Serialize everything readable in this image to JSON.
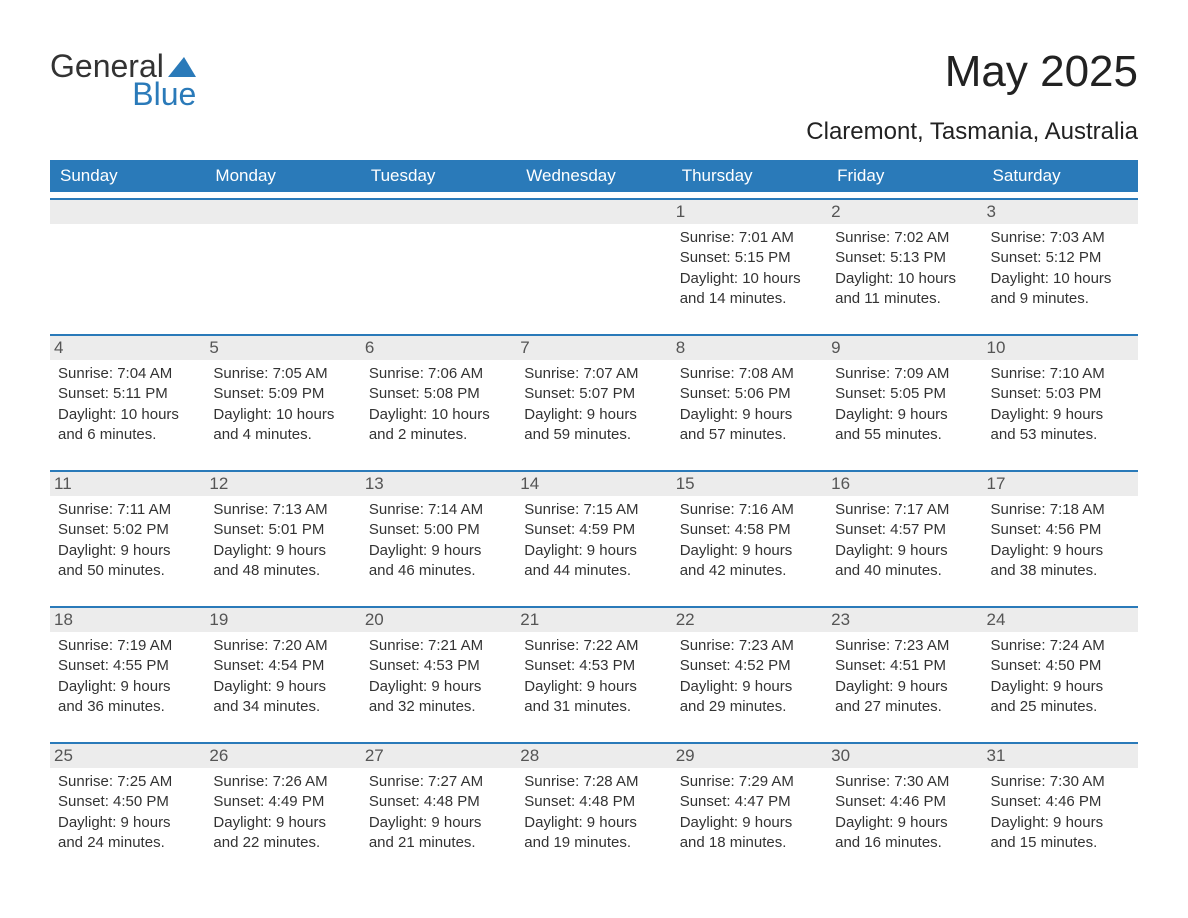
{
  "logo": {
    "text1": "General",
    "text2": "Blue",
    "mark_color": "#2a7ab9"
  },
  "title": "May 2025",
  "subtitle": "Claremont, Tasmania, Australia",
  "colors": {
    "header_bg": "#2a7ab9",
    "header_text": "#ffffff",
    "daynum_bg": "#ececec",
    "daynum_text": "#555555",
    "body_text": "#333333",
    "rule": "#2a7ab9",
    "page_bg": "#ffffff"
  },
  "layout": {
    "columns": 7,
    "rows": 5,
    "font_family": "Arial",
    "title_fontsize": 44,
    "subtitle_fontsize": 24,
    "dow_fontsize": 17,
    "daynum_fontsize": 17,
    "info_fontsize": 15
  },
  "days_of_week": [
    "Sunday",
    "Monday",
    "Tuesday",
    "Wednesday",
    "Thursday",
    "Friday",
    "Saturday"
  ],
  "weeks": [
    [
      {
        "blank": true
      },
      {
        "blank": true
      },
      {
        "blank": true
      },
      {
        "blank": true
      },
      {
        "day": "1",
        "sunrise": "Sunrise: 7:01 AM",
        "sunset": "Sunset: 5:15 PM",
        "daylight": "Daylight: 10 hours and 14 minutes."
      },
      {
        "day": "2",
        "sunrise": "Sunrise: 7:02 AM",
        "sunset": "Sunset: 5:13 PM",
        "daylight": "Daylight: 10 hours and 11 minutes."
      },
      {
        "day": "3",
        "sunrise": "Sunrise: 7:03 AM",
        "sunset": "Sunset: 5:12 PM",
        "daylight": "Daylight: 10 hours and 9 minutes."
      }
    ],
    [
      {
        "day": "4",
        "sunrise": "Sunrise: 7:04 AM",
        "sunset": "Sunset: 5:11 PM",
        "daylight": "Daylight: 10 hours and 6 minutes."
      },
      {
        "day": "5",
        "sunrise": "Sunrise: 7:05 AM",
        "sunset": "Sunset: 5:09 PM",
        "daylight": "Daylight: 10 hours and 4 minutes."
      },
      {
        "day": "6",
        "sunrise": "Sunrise: 7:06 AM",
        "sunset": "Sunset: 5:08 PM",
        "daylight": "Daylight: 10 hours and 2 minutes."
      },
      {
        "day": "7",
        "sunrise": "Sunrise: 7:07 AM",
        "sunset": "Sunset: 5:07 PM",
        "daylight": "Daylight: 9 hours and 59 minutes."
      },
      {
        "day": "8",
        "sunrise": "Sunrise: 7:08 AM",
        "sunset": "Sunset: 5:06 PM",
        "daylight": "Daylight: 9 hours and 57 minutes."
      },
      {
        "day": "9",
        "sunrise": "Sunrise: 7:09 AM",
        "sunset": "Sunset: 5:05 PM",
        "daylight": "Daylight: 9 hours and 55 minutes."
      },
      {
        "day": "10",
        "sunrise": "Sunrise: 7:10 AM",
        "sunset": "Sunset: 5:03 PM",
        "daylight": "Daylight: 9 hours and 53 minutes."
      }
    ],
    [
      {
        "day": "11",
        "sunrise": "Sunrise: 7:11 AM",
        "sunset": "Sunset: 5:02 PM",
        "daylight": "Daylight: 9 hours and 50 minutes."
      },
      {
        "day": "12",
        "sunrise": "Sunrise: 7:13 AM",
        "sunset": "Sunset: 5:01 PM",
        "daylight": "Daylight: 9 hours and 48 minutes."
      },
      {
        "day": "13",
        "sunrise": "Sunrise: 7:14 AM",
        "sunset": "Sunset: 5:00 PM",
        "daylight": "Daylight: 9 hours and 46 minutes."
      },
      {
        "day": "14",
        "sunrise": "Sunrise: 7:15 AM",
        "sunset": "Sunset: 4:59 PM",
        "daylight": "Daylight: 9 hours and 44 minutes."
      },
      {
        "day": "15",
        "sunrise": "Sunrise: 7:16 AM",
        "sunset": "Sunset: 4:58 PM",
        "daylight": "Daylight: 9 hours and 42 minutes."
      },
      {
        "day": "16",
        "sunrise": "Sunrise: 7:17 AM",
        "sunset": "Sunset: 4:57 PM",
        "daylight": "Daylight: 9 hours and 40 minutes."
      },
      {
        "day": "17",
        "sunrise": "Sunrise: 7:18 AM",
        "sunset": "Sunset: 4:56 PM",
        "daylight": "Daylight: 9 hours and 38 minutes."
      }
    ],
    [
      {
        "day": "18",
        "sunrise": "Sunrise: 7:19 AM",
        "sunset": "Sunset: 4:55 PM",
        "daylight": "Daylight: 9 hours and 36 minutes."
      },
      {
        "day": "19",
        "sunrise": "Sunrise: 7:20 AM",
        "sunset": "Sunset: 4:54 PM",
        "daylight": "Daylight: 9 hours and 34 minutes."
      },
      {
        "day": "20",
        "sunrise": "Sunrise: 7:21 AM",
        "sunset": "Sunset: 4:53 PM",
        "daylight": "Daylight: 9 hours and 32 minutes."
      },
      {
        "day": "21",
        "sunrise": "Sunrise: 7:22 AM",
        "sunset": "Sunset: 4:53 PM",
        "daylight": "Daylight: 9 hours and 31 minutes."
      },
      {
        "day": "22",
        "sunrise": "Sunrise: 7:23 AM",
        "sunset": "Sunset: 4:52 PM",
        "daylight": "Daylight: 9 hours and 29 minutes."
      },
      {
        "day": "23",
        "sunrise": "Sunrise: 7:23 AM",
        "sunset": "Sunset: 4:51 PM",
        "daylight": "Daylight: 9 hours and 27 minutes."
      },
      {
        "day": "24",
        "sunrise": "Sunrise: 7:24 AM",
        "sunset": "Sunset: 4:50 PM",
        "daylight": "Daylight: 9 hours and 25 minutes."
      }
    ],
    [
      {
        "day": "25",
        "sunrise": "Sunrise: 7:25 AM",
        "sunset": "Sunset: 4:50 PM",
        "daylight": "Daylight: 9 hours and 24 minutes."
      },
      {
        "day": "26",
        "sunrise": "Sunrise: 7:26 AM",
        "sunset": "Sunset: 4:49 PM",
        "daylight": "Daylight: 9 hours and 22 minutes."
      },
      {
        "day": "27",
        "sunrise": "Sunrise: 7:27 AM",
        "sunset": "Sunset: 4:48 PM",
        "daylight": "Daylight: 9 hours and 21 minutes."
      },
      {
        "day": "28",
        "sunrise": "Sunrise: 7:28 AM",
        "sunset": "Sunset: 4:48 PM",
        "daylight": "Daylight: 9 hours and 19 minutes."
      },
      {
        "day": "29",
        "sunrise": "Sunrise: 7:29 AM",
        "sunset": "Sunset: 4:47 PM",
        "daylight": "Daylight: 9 hours and 18 minutes."
      },
      {
        "day": "30",
        "sunrise": "Sunrise: 7:30 AM",
        "sunset": "Sunset: 4:46 PM",
        "daylight": "Daylight: 9 hours and 16 minutes."
      },
      {
        "day": "31",
        "sunrise": "Sunrise: 7:30 AM",
        "sunset": "Sunset: 4:46 PM",
        "daylight": "Daylight: 9 hours and 15 minutes."
      }
    ]
  ]
}
